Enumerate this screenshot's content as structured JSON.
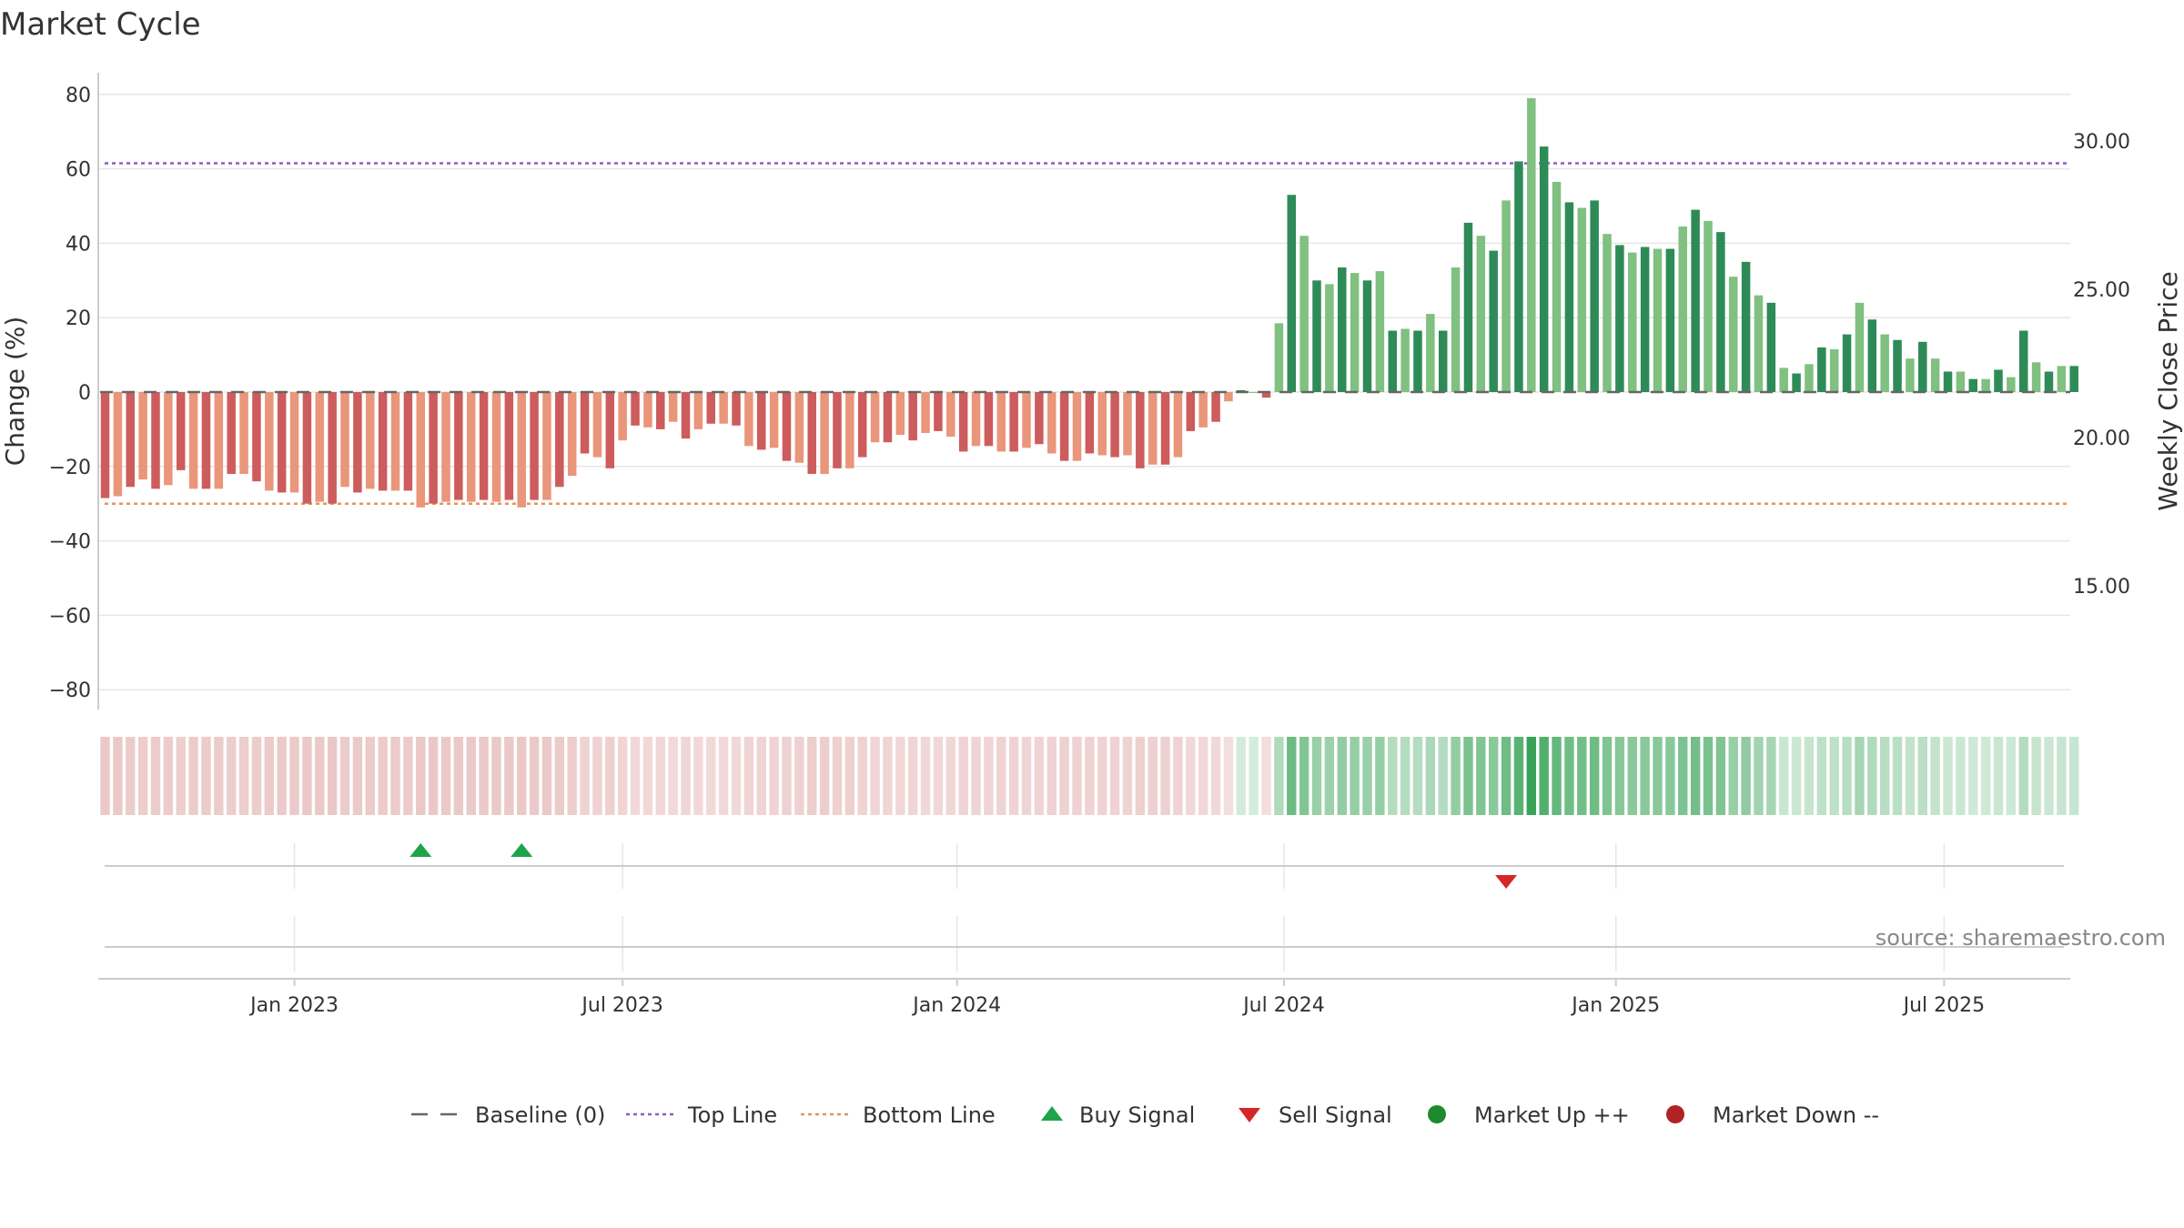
{
  "chart_data": {
    "type": "bar",
    "title": "Market Cycle",
    "ylabel": "Change (%)",
    "y2label": "Weekly Close Price",
    "ylim": [
      -86,
      86
    ],
    "yticks": [
      80,
      60,
      40,
      20,
      0,
      -20,
      -40,
      -60,
      -80
    ],
    "ytick_labels": [
      "80",
      "60",
      "40",
      "20",
      "0",
      "−20",
      "−40",
      "−60",
      "−80"
    ],
    "y2ticks": [
      "30.00",
      "25.00",
      "20.00",
      "15.00"
    ],
    "y2_values": [
      30,
      25,
      20,
      15
    ],
    "xtick_labels": [
      "Jan 2023",
      "Jul 2023",
      "Jan 2024",
      "Jul 2024",
      "Jan 2025",
      "Jul 2025"
    ],
    "xtick_weeks": [
      15,
      41,
      67.5,
      93.4,
      119.7,
      145.7
    ],
    "top_line": 61.5,
    "bottom_line": -30,
    "baseline": 0,
    "values": [
      -28.5,
      -28,
      -25.5,
      -23.5,
      -26,
      -25,
      -21,
      -26,
      -26,
      -26,
      -22,
      -22,
      -24,
      -26.5,
      -27,
      -27,
      -30,
      -29.5,
      -30,
      -25.5,
      -27,
      -26,
      -26.5,
      -26.5,
      -26.5,
      -31,
      -30,
      -29.5,
      -29,
      -29.5,
      -29,
      -29.5,
      -29,
      -31,
      -29,
      -29,
      -25.5,
      -22.5,
      -16.5,
      -17.5,
      -20.5,
      -13,
      -9,
      -9.5,
      -10,
      -8,
      -12.5,
      -10,
      -8.5,
      -8.5,
      -9,
      -14.5,
      -15.5,
      -15,
      -18.5,
      -19,
      -22,
      -22,
      -20.5,
      -20.5,
      -17.5,
      -13.5,
      -13.5,
      -11.5,
      -13,
      -11,
      -10.5,
      -12,
      -16,
      -14.5,
      -14.5,
      -16,
      -16,
      -15,
      -14,
      -16.5,
      -18.5,
      -18.5,
      -16.5,
      -17,
      -17.5,
      -17,
      -20.5,
      -19.5,
      -19.5,
      -17.5,
      -10.5,
      -9.5,
      -8,
      -2.5,
      0.5,
      0,
      -1.5,
      18.5,
      53,
      42,
      30,
      29,
      33.5,
      32,
      30,
      32.5,
      16.5,
      17,
      16.5,
      21,
      16.5,
      33.5,
      45.5,
      42,
      38,
      51.5,
      62,
      79,
      66,
      56.5,
      51,
      49.5,
      51.5,
      42.5,
      39.5,
      37.5,
      39,
      38.5,
      38.5,
      44.5,
      49,
      46,
      43,
      31,
      35,
      26,
      24,
      6.5,
      5,
      7.5,
      12,
      11.5,
      15.5,
      24,
      19.5,
      15.5,
      14,
      9,
      13.5,
      9,
      5.5,
      5.5,
      3.5,
      3.5,
      6,
      4,
      16.5,
      8,
      5.5,
      7,
      7
    ],
    "signals": [
      {
        "type": "buy",
        "week": 25
      },
      {
        "type": "buy",
        "week": 33
      },
      {
        "type": "sell",
        "week": 111
      }
    ],
    "legend": [
      {
        "label": "Baseline (0)",
        "symbol": "dash",
        "color": "#666666"
      },
      {
        "label": "Top Line",
        "symbol": "dotted",
        "color": "#8a5cc9"
      },
      {
        "label": "Bottom Line",
        "symbol": "dotted",
        "color": "#e8935a"
      },
      {
        "label": "Buy Signal",
        "symbol": "triangle-up",
        "color": "#1fa34a"
      },
      {
        "label": "Sell Signal",
        "symbol": "triangle-down",
        "color": "#d62728"
      },
      {
        "label": "Market Up ++",
        "symbol": "circle",
        "color": "#1e8a2e"
      },
      {
        "label": "Market Down --",
        "symbol": "circle",
        "color": "#b22222"
      }
    ],
    "legend_position": "bottom-center",
    "grid": true
  },
  "source": "source: sharemaestro.com",
  "colors": {
    "pos_dark": "#2e8b57",
    "pos_light": "#80c080",
    "neg_dark": "#cd5c5c",
    "neg_light": "#e9967a",
    "top_line": "#8a5cc9",
    "bottom_line": "#e8935a",
    "baseline": "#666666",
    "grid": "#e6e6e6"
  }
}
